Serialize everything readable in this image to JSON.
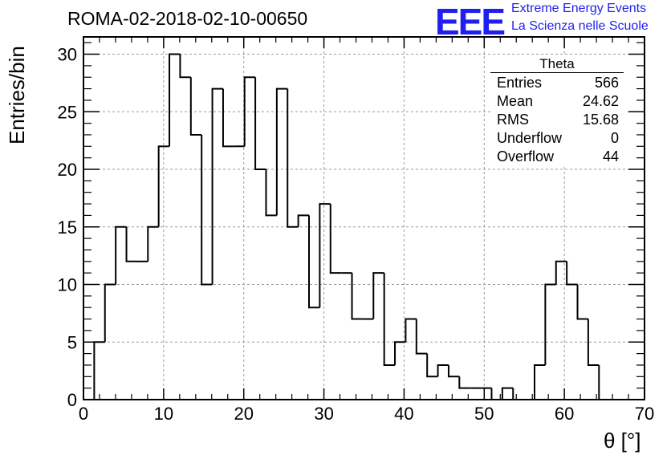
{
  "header": {
    "run_title": "ROMA-02-2018-02-10-00650",
    "logo_text": "EEE",
    "logo_line1": "Extreme Energy Events",
    "logo_line2": "La Scienza nelle Scuole",
    "logo_color": "#1f1ff0"
  },
  "stats": {
    "title": "Theta",
    "rows": [
      {
        "key": "Entries",
        "value": "566"
      },
      {
        "key": "Mean",
        "value": "24.62"
      },
      {
        "key": "RMS",
        "value": "15.68"
      },
      {
        "key": "Underflow",
        "value": "0"
      },
      {
        "key": "Overflow",
        "value": "44"
      }
    ]
  },
  "chart_data": {
    "type": "bar",
    "histogram": true,
    "xlabel": "θ [°]",
    "ylabel": "Entries/bin",
    "xlim": [
      0,
      70
    ],
    "ylim": [
      0,
      31.5
    ],
    "grid": true,
    "x_ticks": [
      "0",
      "10",
      "20",
      "30",
      "40",
      "50",
      "60",
      "70"
    ],
    "y_ticks": [
      "0",
      "5",
      "10",
      "15",
      "20",
      "25",
      "30"
    ],
    "x_tick_values": [
      0,
      10,
      20,
      30,
      40,
      50,
      60,
      70
    ],
    "y_tick_values": [
      0,
      5,
      10,
      15,
      20,
      25,
      30
    ],
    "bin_width": 1.34,
    "bin_start": 1.34,
    "values": [
      5,
      10,
      15,
      12,
      12,
      15,
      22,
      30,
      28,
      23,
      10,
      27,
      22,
      22,
      28,
      20,
      16,
      27,
      15,
      16,
      8,
      17,
      11,
      11,
      7,
      7,
      11,
      3,
      5,
      7,
      4,
      2,
      3,
      2,
      1,
      1,
      1,
      0,
      1,
      0,
      0,
      3,
      10,
      12,
      10,
      7,
      3,
      0
    ]
  }
}
